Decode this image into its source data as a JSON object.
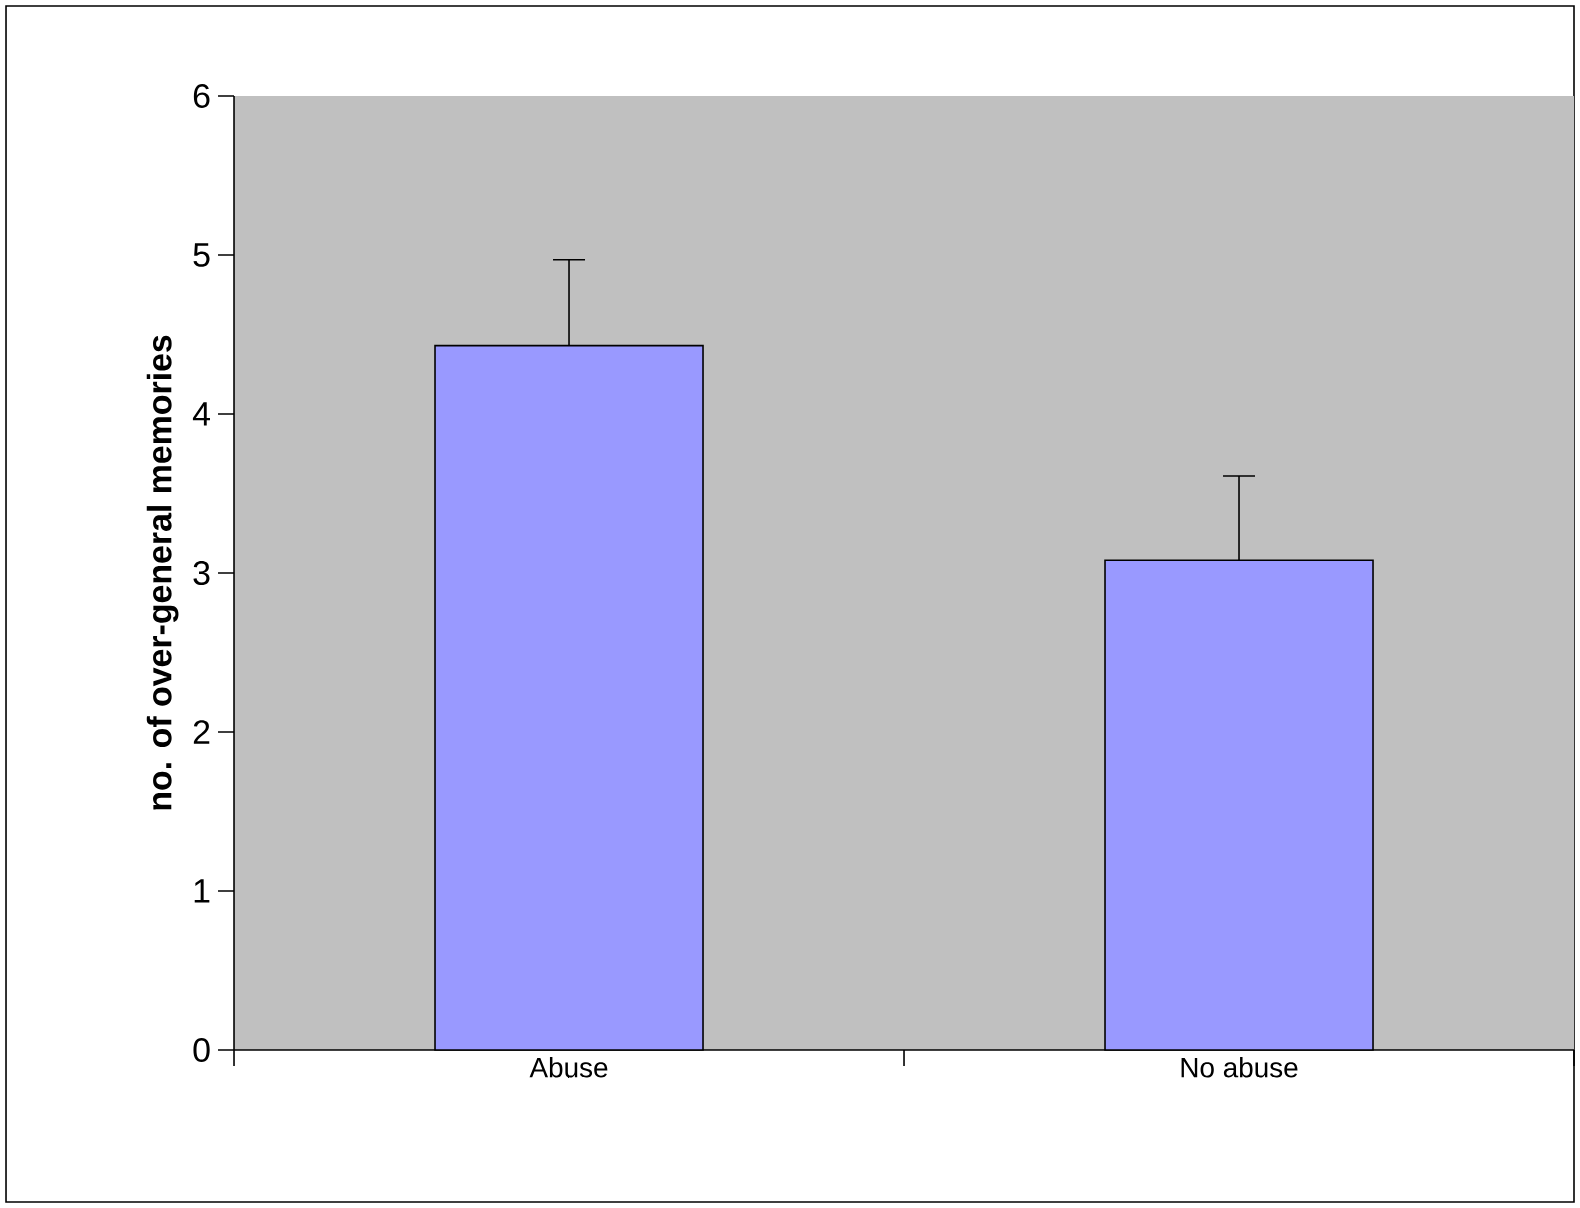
{
  "chart_data": {
    "type": "bar",
    "ylabel": "no. of over-general memories",
    "categories": [
      "Abuse",
      "No abuse"
    ],
    "values": [
      4.43,
      3.08
    ],
    "errors": [
      [
        4.43,
        4.97
      ],
      [
        3.08,
        3.61
      ]
    ],
    "color": "#9999ff",
    "ylim": [
      0,
      6
    ],
    "yticks": [
      0,
      1,
      2,
      3,
      4,
      5,
      6
    ],
    "grid": false
  }
}
